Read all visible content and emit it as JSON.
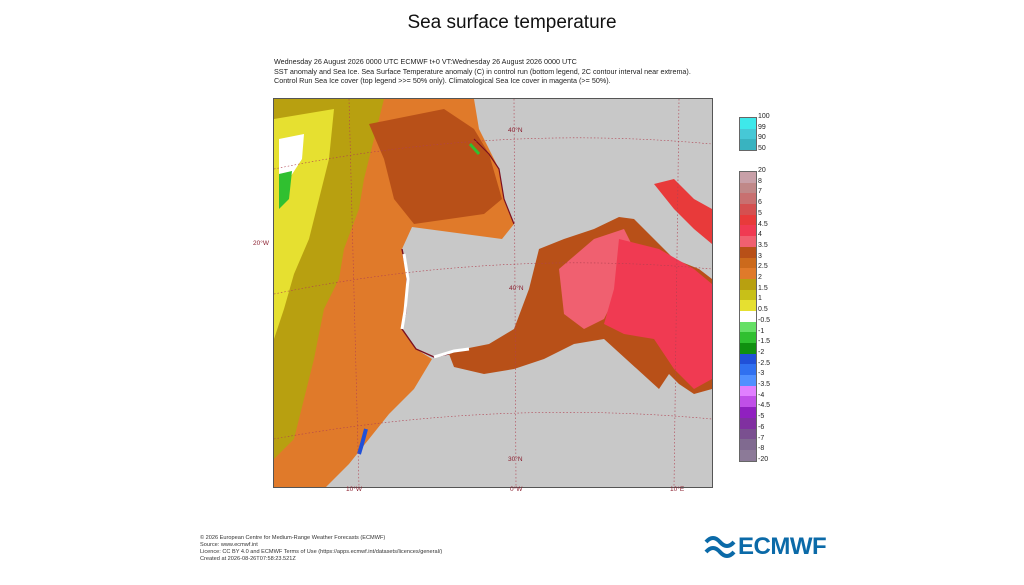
{
  "title": "Sea surface temperature",
  "header": {
    "line1": "Wednesday 26 August 2026 0000 UTC  ECMWF  t+0  VT:Wednesday 26 August 2026 0000 UTC",
    "line2": "SST anomaly and Sea Ice. Sea Surface Temperature anomaly (C) in control run (bottom legend, 2C contour interval near extrema).",
    "line3": "Control Run Sea Ice cover (top legend >>= 50% only). Climatological Sea Ice cover in magenta (>= 50%)."
  },
  "map": {
    "lat_labels": [
      "40°N",
      "20°W",
      "40°N",
      "30°N"
    ],
    "lon_labels": [
      "10°W",
      "0°W",
      "10°E"
    ]
  },
  "legend_top": {
    "labels": [
      "100",
      "99",
      "90",
      "50"
    ],
    "colors": [
      "#3ee8ea",
      "#46c8d6",
      "#39b3c0"
    ]
  },
  "legend_bottom": {
    "labels": [
      "20",
      "8",
      "7",
      "6",
      "5",
      "4.5",
      "4",
      "3.5",
      "3",
      "2.5",
      "2",
      "1.5",
      "1",
      "0.5",
      "-0.5",
      "-1",
      "-1.5",
      "-2",
      "-2.5",
      "-3",
      "-3.5",
      "-4",
      "-4.5",
      "-5",
      "-6",
      "-7",
      "-8",
      "-20"
    ],
    "colors": [
      "#c8a0a8",
      "#c08888",
      "#c87070",
      "#d45050",
      "#e83a3a",
      "#f03a52",
      "#f06070",
      "#b85018",
      "#cc6a1c",
      "#e07a2a",
      "#b8a010",
      "#c8c018",
      "#e6e030",
      "#ffffff",
      "#66e066",
      "#30c030",
      "#109010",
      "#2050d8",
      "#3070f0",
      "#5090ff",
      "#e080ff",
      "#c050e8",
      "#9020c0",
      "#8030a0",
      "#7a5090",
      "#806a90",
      "#8c7a98"
    ]
  },
  "footer": {
    "line1": "© 2026 European Centre for Medium-Range Weather Forecasts (ECMWF)",
    "line2": "Source: www.ecmwf.int",
    "line3": "Licence: CC BY 4.0 and ECMWF Terms of Use (https://apps.ecmwf.int/datasets/licences/general/)",
    "line4": "Created at 2026-08-26T07:58:23.521Z"
  },
  "logo": {
    "text": "ECMWF",
    "color": "#0b6aa8"
  }
}
